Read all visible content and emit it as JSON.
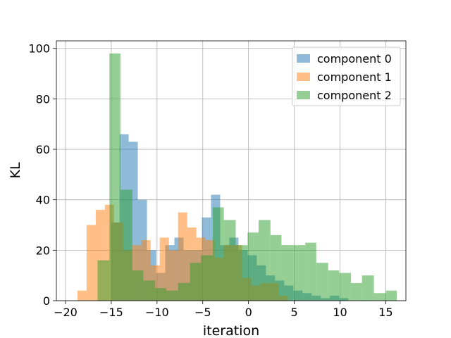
{
  "chart_data": {
    "type": "bar",
    "title": "",
    "xlabel": "iteration",
    "ylabel": "KL",
    "xlim": [
      -21,
      17.2
    ],
    "ylim": [
      0,
      103
    ],
    "xticks": [
      -20,
      -15,
      -10,
      -5,
      0,
      5,
      10,
      15
    ],
    "yticks": [
      0,
      20,
      40,
      60,
      80,
      100
    ],
    "grid": true,
    "legend_position": "top-right",
    "series": [
      {
        "name": "component 0",
        "color": "#1f77b4",
        "bins": [
          {
            "x0": -15.0,
            "x1": -14.1,
            "value": 31
          },
          {
            "x0": -14.1,
            "x1": -13.1,
            "value": 66
          },
          {
            "x0": -13.1,
            "x1": -12.1,
            "value": 63
          },
          {
            "x0": -12.1,
            "x1": -11.1,
            "value": 40
          },
          {
            "x0": -11.1,
            "x1": -10.1,
            "value": 20
          },
          {
            "x0": -10.1,
            "x1": -9.1,
            "value": 11
          },
          {
            "x0": -9.1,
            "x1": -8.1,
            "value": 22
          },
          {
            "x0": -8.1,
            "x1": -7.1,
            "value": 25
          },
          {
            "x0": -7.1,
            "x1": -6.1,
            "value": 20
          },
          {
            "x0": -6.1,
            "x1": -5.1,
            "value": 20
          },
          {
            "x0": -5.1,
            "x1": -4.1,
            "value": 33
          },
          {
            "x0": -4.1,
            "x1": -3.1,
            "value": 42
          },
          {
            "x0": -3.1,
            "x1": -2.1,
            "value": 22
          },
          {
            "x0": -2.1,
            "x1": -1.1,
            "value": 25
          },
          {
            "x0": -1.1,
            "x1": -0.1,
            "value": 20
          },
          {
            "x0": -0.1,
            "x1": 0.9,
            "value": 18
          },
          {
            "x0": 0.9,
            "x1": 1.9,
            "value": 14
          },
          {
            "x0": 1.9,
            "x1": 2.9,
            "value": 10
          },
          {
            "x0": 2.9,
            "x1": 3.9,
            "value": 8
          },
          {
            "x0": 3.9,
            "x1": 4.9,
            "value": 6
          },
          {
            "x0": 4.9,
            "x1": 5.9,
            "value": 4
          },
          {
            "x0": 5.9,
            "x1": 6.9,
            "value": 3
          },
          {
            "x0": 6.9,
            "x1": 7.9,
            "value": 2
          },
          {
            "x0": 7.9,
            "x1": 8.9,
            "value": 1
          },
          {
            "x0": 8.9,
            "x1": 9.9,
            "value": 2
          },
          {
            "x0": 9.9,
            "x1": 10.9,
            "value": 1
          }
        ]
      },
      {
        "name": "component 1",
        "color": "#ff7f0e",
        "bins": [
          {
            "x0": -18.7,
            "x1": -17.7,
            "value": 4
          },
          {
            "x0": -17.7,
            "x1": -16.7,
            "value": 30
          },
          {
            "x0": -16.7,
            "x1": -15.7,
            "value": 36
          },
          {
            "x0": -15.7,
            "x1": -14.7,
            "value": 38
          },
          {
            "x0": -14.7,
            "x1": -13.7,
            "value": 31
          },
          {
            "x0": -13.7,
            "x1": -12.7,
            "value": 20
          },
          {
            "x0": -12.7,
            "x1": -11.7,
            "value": 22
          },
          {
            "x0": -11.7,
            "x1": -10.7,
            "value": 24
          },
          {
            "x0": -10.7,
            "x1": -9.7,
            "value": 14
          },
          {
            "x0": -9.7,
            "x1": -8.7,
            "value": 25
          },
          {
            "x0": -8.7,
            "x1": -7.7,
            "value": 20
          },
          {
            "x0": -7.7,
            "x1": -6.7,
            "value": 35
          },
          {
            "x0": -6.7,
            "x1": -5.7,
            "value": 29
          },
          {
            "x0": -5.7,
            "x1": -4.7,
            "value": 25
          },
          {
            "x0": -4.7,
            "x1": -3.7,
            "value": 24
          },
          {
            "x0": -3.7,
            "x1": -2.7,
            "value": 17
          },
          {
            "x0": -2.7,
            "x1": -1.7,
            "value": 22
          },
          {
            "x0": -1.7,
            "x1": -0.7,
            "value": 22
          },
          {
            "x0": -0.7,
            "x1": 0.3,
            "value": 9
          },
          {
            "x0": 0.3,
            "x1": 1.3,
            "value": 6
          },
          {
            "x0": 1.3,
            "x1": 2.3,
            "value": 7
          },
          {
            "x0": 2.3,
            "x1": 3.3,
            "value": 7
          },
          {
            "x0": 3.3,
            "x1": 4.3,
            "value": 2
          }
        ]
      },
      {
        "name": "component 2",
        "color": "#2ca02c",
        "bins": [
          {
            "x0": -16.5,
            "x1": -15.2,
            "value": 16
          },
          {
            "x0": -15.2,
            "x1": -14.0,
            "value": 98
          },
          {
            "x0": -14.0,
            "x1": -12.7,
            "value": 44
          },
          {
            "x0": -12.7,
            "x1": -11.5,
            "value": 12
          },
          {
            "x0": -11.5,
            "x1": -10.2,
            "value": 8
          },
          {
            "x0": -10.2,
            "x1": -9.0,
            "value": 5
          },
          {
            "x0": -9.0,
            "x1": -7.7,
            "value": 4
          },
          {
            "x0": -7.7,
            "x1": -6.4,
            "value": 7
          },
          {
            "x0": -6.4,
            "x1": -5.2,
            "value": 15
          },
          {
            "x0": -5.2,
            "x1": -3.9,
            "value": 18
          },
          {
            "x0": -3.9,
            "x1": -2.7,
            "value": 37
          },
          {
            "x0": -2.7,
            "x1": -1.4,
            "value": 32
          },
          {
            "x0": -1.4,
            "x1": -0.1,
            "value": 22
          },
          {
            "x0": -0.1,
            "x1": 1.1,
            "value": 27
          },
          {
            "x0": 1.1,
            "x1": 2.4,
            "value": 32
          },
          {
            "x0": 2.4,
            "x1": 3.6,
            "value": 26
          },
          {
            "x0": 3.6,
            "x1": 4.9,
            "value": 22
          },
          {
            "x0": 4.9,
            "x1": 6.2,
            "value": 22
          },
          {
            "x0": 6.2,
            "x1": 7.4,
            "value": 23
          },
          {
            "x0": 7.4,
            "x1": 8.7,
            "value": 15
          },
          {
            "x0": 8.7,
            "x1": 9.9,
            "value": 12
          },
          {
            "x0": 9.9,
            "x1": 11.2,
            "value": 11
          },
          {
            "x0": 11.2,
            "x1": 12.4,
            "value": 7
          },
          {
            "x0": 12.4,
            "x1": 13.7,
            "value": 10
          },
          {
            "x0": 13.7,
            "x1": 15.0,
            "value": 3
          },
          {
            "x0": 15.0,
            "x1": 16.2,
            "value": 4
          }
        ]
      }
    ]
  }
}
